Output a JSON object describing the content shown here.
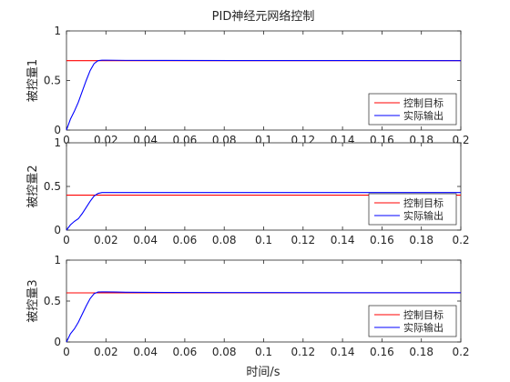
{
  "chart_data": {
    "type": "line",
    "title": "PID神经元网络控制",
    "xlabel": "时间/s",
    "xlim": [
      0,
      0.2
    ],
    "x_ticks": [
      0,
      0.02,
      0.04,
      0.06,
      0.08,
      0.1,
      0.12,
      0.14,
      0.16,
      0.18,
      0.2
    ],
    "x_tick_labels": [
      "0",
      "0.02",
      "0.04",
      "0.06",
      "0.08",
      "0.1",
      "0.12",
      "0.14",
      "0.16",
      "0.18",
      "0.2"
    ],
    "grid": false,
    "legend_placement": "right",
    "subplots": [
      {
        "ylabel": "被控量1",
        "ylim": [
          0,
          1
        ],
        "y_ticks": [
          0,
          0.5,
          1
        ],
        "y_tick_labels": [
          "0",
          "0.5",
          "1"
        ],
        "series": [
          {
            "name": "控制目标",
            "color": "#ff0000",
            "x": [
              0,
              0.2
            ],
            "y": [
              0.7,
              0.7
            ]
          },
          {
            "name": "实际输出",
            "color": "#0000ff",
            "x": [
              0,
              0.002,
              0.004,
              0.006,
              0.008,
              0.01,
              0.012,
              0.014,
              0.016,
              0.018,
              0.02,
              0.025,
              0.03,
              0.05,
              0.1,
              0.15,
              0.2
            ],
            "y": [
              0,
              0.11,
              0.19,
              0.28,
              0.39,
              0.5,
              0.6,
              0.67,
              0.7,
              0.705,
              0.705,
              0.704,
              0.703,
              0.702,
              0.701,
              0.701,
              0.7
            ]
          }
        ]
      },
      {
        "ylabel": "被控量2",
        "ylim": [
          0,
          1
        ],
        "y_ticks": [
          0,
          0.5,
          1
        ],
        "y_tick_labels": [
          "0",
          "0.5",
          "1"
        ],
        "series": [
          {
            "name": "控制目标",
            "color": "#ff0000",
            "x": [
              0,
              0.2
            ],
            "y": [
              0.4,
              0.4
            ]
          },
          {
            "name": "实际输出",
            "color": "#0000ff",
            "x": [
              0,
              0.002,
              0.004,
              0.006,
              0.008,
              0.01,
              0.012,
              0.014,
              0.016,
              0.018,
              0.02,
              0.025,
              0.03,
              0.05,
              0.1,
              0.15,
              0.2
            ],
            "y": [
              0,
              0.06,
              0.1,
              0.13,
              0.19,
              0.26,
              0.33,
              0.39,
              0.42,
              0.43,
              0.43,
              0.43,
              0.43,
              0.43,
              0.43,
              0.43,
              0.43
            ]
          }
        ]
      },
      {
        "ylabel": "被控量3",
        "ylim": [
          0,
          1
        ],
        "y_ticks": [
          0,
          0.5,
          1
        ],
        "y_tick_labels": [
          "0",
          "0.5",
          "1"
        ],
        "series": [
          {
            "name": "控制目标",
            "color": "#ff0000",
            "x": [
              0,
              0.2
            ],
            "y": [
              0.6,
              0.6
            ]
          },
          {
            "name": "实际输出",
            "color": "#0000ff",
            "x": [
              0,
              0.002,
              0.004,
              0.006,
              0.008,
              0.01,
              0.012,
              0.014,
              0.016,
              0.018,
              0.02,
              0.025,
              0.03,
              0.05,
              0.1,
              0.15,
              0.2
            ],
            "y": [
              0,
              0.1,
              0.16,
              0.24,
              0.34,
              0.44,
              0.53,
              0.59,
              0.61,
              0.612,
              0.612,
              0.61,
              0.608,
              0.605,
              0.603,
              0.602,
              0.602
            ]
          }
        ]
      }
    ]
  }
}
